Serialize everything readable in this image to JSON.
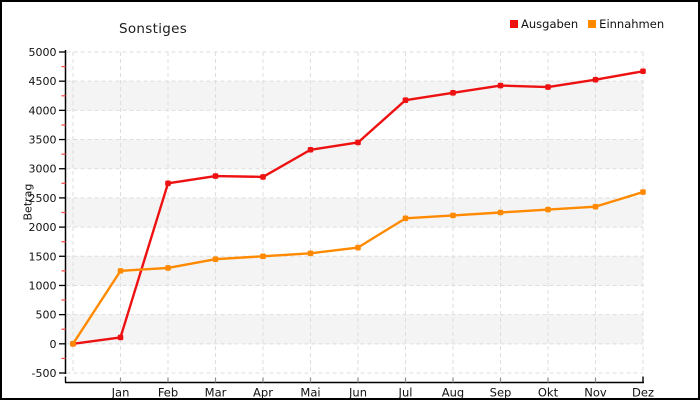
{
  "title": "Sonstiges",
  "y_axis_title": "Betrag",
  "legend": [
    {
      "label": "Ausgaben",
      "color": "#ee1111"
    },
    {
      "label": "Einnahmen",
      "color": "#ff8a00"
    }
  ],
  "colors": {
    "series_ausgaben": "#ee1111",
    "series_einnahmen": "#ff8a00",
    "band": "#f4f4f4",
    "gridline": "#dedede",
    "axis": "#000000",
    "minor_tick": "#ff4d4d",
    "month_tick": "#8c8c8c",
    "text": "#111111"
  },
  "chart_data": {
    "type": "line",
    "title": "Sonstiges",
    "xlabel": "",
    "ylabel": "Betrag",
    "categories": [
      "",
      "Jan",
      "Feb",
      "Mar",
      "Apr",
      "Mai",
      "Jun",
      "Jul",
      "Aug",
      "Sep",
      "Okt",
      "Nov",
      "Dez"
    ],
    "series": [
      {
        "name": "Ausgaben",
        "color": "#ee1111",
        "values": [
          0,
          110,
          2750,
          2875,
          2860,
          3325,
          3450,
          4175,
          4300,
          4425,
          4400,
          4525,
          4670
        ]
      },
      {
        "name": "Einnahmen",
        "color": "#ff8a00",
        "values": [
          0,
          1250,
          1300,
          1450,
          1500,
          1550,
          1650,
          2150,
          2200,
          2250,
          2300,
          2350,
          2600
        ]
      }
    ],
    "ylim": [
      -500,
      5000
    ],
    "ytick_step": 500,
    "yminor_step": 250,
    "ytick_labels": [
      "5000",
      "4500",
      "4000",
      "3500",
      "3000",
      "2500",
      "2000",
      "1500",
      "1000",
      "500",
      "0",
      "-500"
    ],
    "grid": true,
    "band_rows": true,
    "legend_position": "top-right"
  }
}
